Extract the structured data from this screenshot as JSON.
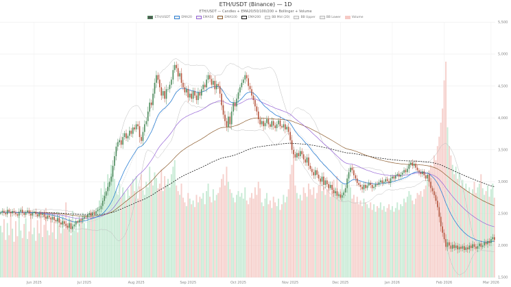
{
  "chart_data": {
    "type": "candlestick",
    "title": "ETH/USDT (Binance) — 1D",
    "subtitle": "ETH/USDT — Candles + EMA20/50/100/200 + Bollinger + Volume",
    "legend": [
      "ETH/USDT",
      "EMA20",
      "EMA50",
      "EMA100",
      "EMA200",
      "BB Mid (20)",
      "BB Upper",
      "BB Lower",
      "Volume"
    ],
    "legend_placement": "top-center",
    "grid": true,
    "start_date": "2025-05-12",
    "x_ticks": [
      "Jun 2025",
      "Jul 2025",
      "Aug 2025",
      "Sep 2025",
      "Oct 2025",
      "Nov 2025",
      "Dec 2025",
      "Jan 2026",
      "Feb 2026",
      "Mar 2026"
    ],
    "y_ticks": [
      "5,500",
      "5,000",
      "4,500",
      "4,000",
      "3,500",
      "3,000",
      "2,500",
      "2,000",
      "1,500"
    ],
    "ylim": [
      1500,
      5500
    ],
    "colors": {
      "up": "#4a8a5a",
      "down": "#b5523a",
      "vol_up": "#bfe8cf",
      "vol_down": "#f5c9c4",
      "ema20": "#2a7fd4",
      "ema50": "#9461d6",
      "ema100": "#8b5a2b",
      "ema200": "#111111",
      "bb": "#bbbbbb"
    },
    "close": [
      2520,
      2545,
      2510,
      2490,
      2560,
      2530,
      2505,
      2540,
      2515,
      2490,
      2470,
      2530,
      2560,
      2510,
      2480,
      2520,
      2550,
      2500,
      2470,
      2510,
      2530,
      2490,
      2460,
      2510,
      2480,
      2500,
      2450,
      2420,
      2470,
      2440,
      2410,
      2450,
      2400,
      2380,
      2430,
      2360,
      2330,
      2380,
      2340,
      2310,
      2280,
      2350,
      2260,
      2300,
      2330,
      2380,
      2360,
      2410,
      2390,
      2420,
      2450,
      2440,
      2480,
      2510,
      2470,
      2520,
      2500,
      2540,
      2560,
      2570,
      2620,
      2700,
      2780,
      2850,
      2920,
      3000,
      3080,
      3250,
      3400,
      3550,
      3620,
      3650,
      3580,
      3700,
      3760,
      3680,
      3720,
      3800,
      3750,
      3850,
      3820,
      3900,
      3870,
      3700,
      3640,
      3780,
      3900,
      3950,
      4100,
      4240,
      4200,
      4380,
      4550,
      4670,
      4600,
      4480,
      4350,
      4420,
      4300,
      4450,
      4450,
      4520,
      4600,
      4750,
      4830,
      4780,
      4650,
      4700,
      4550,
      4480,
      4400,
      4450,
      4320,
      4380,
      4300,
      4420,
      4350,
      4280,
      4400,
      4350,
      4450,
      4520,
      4480,
      4600,
      4670,
      4610,
      4520,
      4580,
      4450,
      4530,
      4500,
      4380,
      4200,
      4050,
      3950,
      3860,
      4020,
      3900,
      4100,
      4240,
      4180,
      4300,
      4400,
      4480,
      4550,
      4600,
      4670,
      4620,
      4500,
      4450,
      4350,
      4280,
      4180,
      4100,
      3980,
      3900,
      3950,
      3870,
      3920,
      3980,
      3900,
      3860,
      3950,
      3880,
      3840,
      3900,
      3960,
      3870,
      3850,
      3900,
      3820,
      3860,
      3780,
      3650,
      3500,
      3430,
      3380,
      3450,
      3400,
      3480,
      3430,
      3350,
      3300,
      3380,
      3250,
      3200,
      3150,
      3100,
      3180,
      3110,
      3050,
      3000,
      3080,
      2950,
      3020,
      2960,
      2900,
      2950,
      2870,
      2820,
      2850,
      2780,
      2800,
      2750,
      2790,
      2830,
      2900,
      3050,
      3150,
      3220,
      3180,
      3100,
      3050,
      2980,
      2950,
      2920,
      2880,
      2950,
      2900,
      2940,
      2980,
      2950,
      2900,
      2920,
      2960,
      2950,
      2990,
      3020,
      2980,
      3000,
      3040,
      3010,
      2980,
      3050,
      3080,
      3050,
      3100,
      3120,
      3080,
      3110,
      3140,
      3180,
      3150,
      3200,
      3270,
      3300,
      3250,
      3280,
      3220,
      3180,
      3150,
      3120,
      3160,
      3100,
      3050,
      3110,
      3000,
      2900,
      2850,
      2790,
      2700,
      2600,
      2450,
      2300,
      2200,
      2100,
      1980,
      2050,
      2000,
      1950,
      2010,
      1960,
      2000,
      1940,
      1980,
      1950,
      1990,
      1930,
      1970,
      1940,
      2000,
      1960,
      2020,
      1980,
      1950,
      1990,
      2030,
      1980,
      2000,
      2050,
      2020,
      2070,
      2040,
      2100,
      2130,
      2090
    ],
    "volume": [
      55,
      48,
      62,
      40,
      58,
      45,
      70,
      52,
      38,
      60,
      44,
      66,
      50,
      42,
      57,
      63,
      41,
      49,
      72,
      46,
      53,
      39,
      61,
      47,
      68,
      43,
      56,
      74,
      50,
      45,
      62,
      48,
      59,
      41,
      70,
      55,
      47,
      66,
      52,
      80,
      58,
      64,
      45,
      71,
      50,
      60,
      48,
      57,
      62,
      69,
      58,
      52,
      66,
      61,
      70,
      65,
      72,
      68,
      75,
      82,
      95,
      88,
      102,
      90,
      110,
      98,
      120,
      115,
      105,
      92,
      88,
      100,
      85,
      96,
      90,
      82,
      94,
      87,
      99,
      105,
      92,
      108,
      84,
      97,
      110,
      93,
      88,
      102,
      96,
      118,
      104,
      98,
      112,
      106,
      95,
      100,
      115,
      92,
      108,
      99,
      105,
      96,
      110,
      118,
      125,
      98,
      92,
      88,
      100,
      85,
      80,
      76,
      90,
      84,
      78,
      82,
      75,
      88,
      80,
      86,
      84,
      90,
      78,
      92,
      100,
      86,
      80,
      94,
      82,
      88,
      90,
      96,
      105,
      110,
      98,
      118,
      102,
      94,
      90,
      85,
      80,
      88,
      92,
      86,
      90,
      84,
      96,
      82,
      78,
      85,
      90,
      84,
      96,
      88,
      102,
      95,
      80,
      76,
      84,
      90,
      78,
      82,
      74,
      86,
      80,
      76,
      84,
      72,
      78,
      88,
      80,
      86,
      94,
      110,
      120,
      135,
      98,
      90,
      84,
      88,
      82,
      96,
      90,
      86,
      100,
      94,
      88,
      96,
      84,
      90,
      98,
      102,
      92,
      96,
      88,
      94,
      100,
      86,
      92,
      104,
      96,
      108,
      90,
      94,
      100,
      92,
      88,
      98,
      110,
      96,
      84,
      88,
      80,
      86,
      78,
      82,
      76,
      84,
      80,
      78,
      74,
      80,
      72,
      78,
      70,
      76,
      74,
      80,
      72,
      76,
      70,
      74,
      78,
      72,
      76,
      70,
      74,
      80,
      72,
      78,
      76,
      84,
      80,
      86,
      92,
      88,
      82,
      78,
      84,
      90,
      88,
      92,
      86,
      94,
      98,
      104,
      112,
      120,
      118,
      130,
      125,
      140,
      150,
      165,
      180,
      210,
      230,
      160,
      140,
      130,
      120,
      110,
      118,
      105,
      112,
      98,
      104,
      95,
      100,
      92,
      96,
      88,
      94,
      102,
      90,
      96,
      100,
      110,
      95,
      88,
      92,
      98,
      86,
      94,
      100,
      85
    ]
  }
}
